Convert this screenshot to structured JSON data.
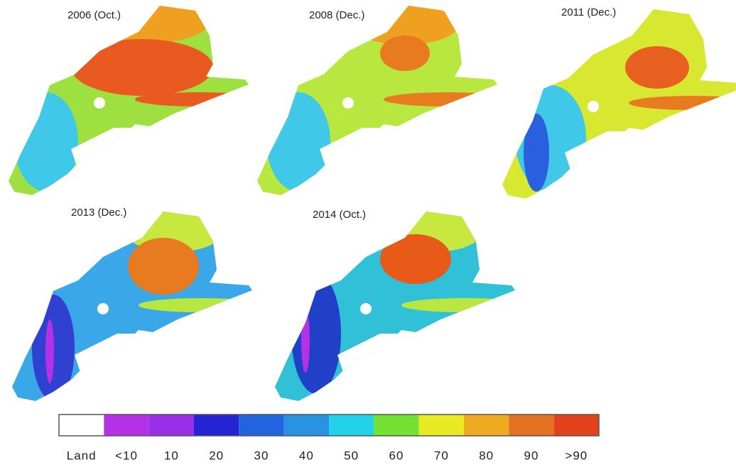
{
  "panels": [
    {
      "label": "2006 (Oct.)"
    },
    {
      "label": "2008 (Dec.)"
    },
    {
      "label": "2011 (Dec.)"
    },
    {
      "label": "2013 (Dec.)"
    },
    {
      "label": "2014 (Oct.)"
    }
  ],
  "legend": {
    "items": [
      {
        "label": "Land",
        "color": "#ffffff"
      },
      {
        "label": "<10",
        "color": "#b431e6"
      },
      {
        "label": "10",
        "color": "#9a2fe8"
      },
      {
        "label": "20",
        "color": "#2424d2"
      },
      {
        "label": "30",
        "color": "#2263e0"
      },
      {
        "label": "40",
        "color": "#2a92e2"
      },
      {
        "label": "50",
        "color": "#22d2ea"
      },
      {
        "label": "60",
        "color": "#74e032"
      },
      {
        "label": "70",
        "color": "#eaea24"
      },
      {
        "label": "80",
        "color": "#f0aa22"
      },
      {
        "label": "90",
        "color": "#e27222"
      },
      {
        "label": ">90",
        "color": "#e2421a"
      }
    ]
  }
}
